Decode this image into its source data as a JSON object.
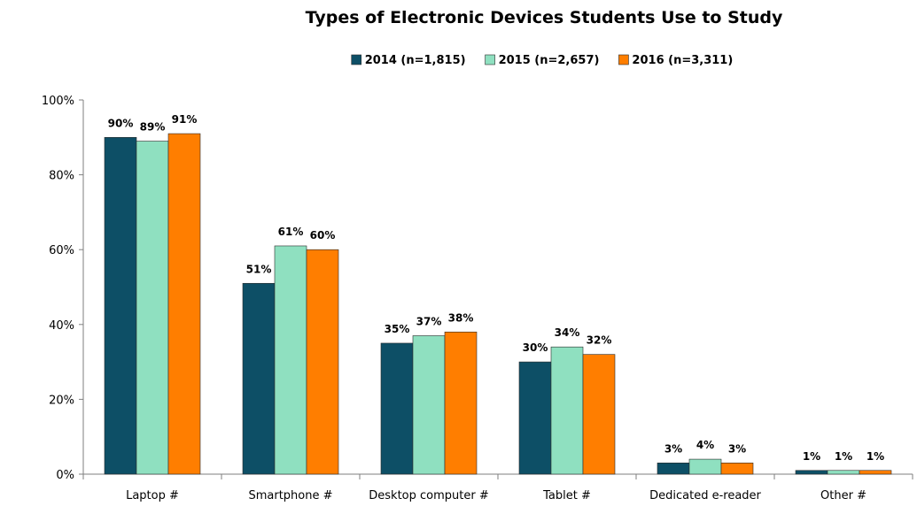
{
  "chart_data": {
    "type": "bar",
    "title": "Types of Electronic Devices Students Use to Study",
    "xlabel": "",
    "ylabel": "",
    "ylim": [
      0,
      100
    ],
    "y_ticks": [
      "0%",
      "20%",
      "40%",
      "60%",
      "80%",
      "100%"
    ],
    "y_tick_values": [
      0,
      20,
      40,
      60,
      80,
      100
    ],
    "grid": false,
    "legend_position": "top",
    "categories": [
      "Laptop #",
      "Smartphone #",
      "Desktop computer #",
      "Tablet #",
      "Dedicated e-reader",
      "Other #"
    ],
    "series": [
      {
        "name": "2014 (n=1,815)",
        "color": "#0d4f66",
        "values": [
          90,
          51,
          35,
          30,
          3,
          1
        ],
        "labels": [
          "90%",
          "51%",
          "35%",
          "30%",
          "3%",
          "1%"
        ]
      },
      {
        "name": "2015 (n=2,657)",
        "color": "#8fe0c0",
        "values": [
          89,
          61,
          37,
          34,
          4,
          1
        ],
        "labels": [
          "89%",
          "61%",
          "37%",
          "34%",
          "4%",
          "1%"
        ]
      },
      {
        "name": "2016 (n=3,311)",
        "color": "#ff7e00",
        "values": [
          91,
          60,
          38,
          32,
          3,
          1
        ],
        "labels": [
          "91%",
          "60%",
          "38%",
          "32%",
          "3%",
          "1%"
        ]
      }
    ]
  }
}
